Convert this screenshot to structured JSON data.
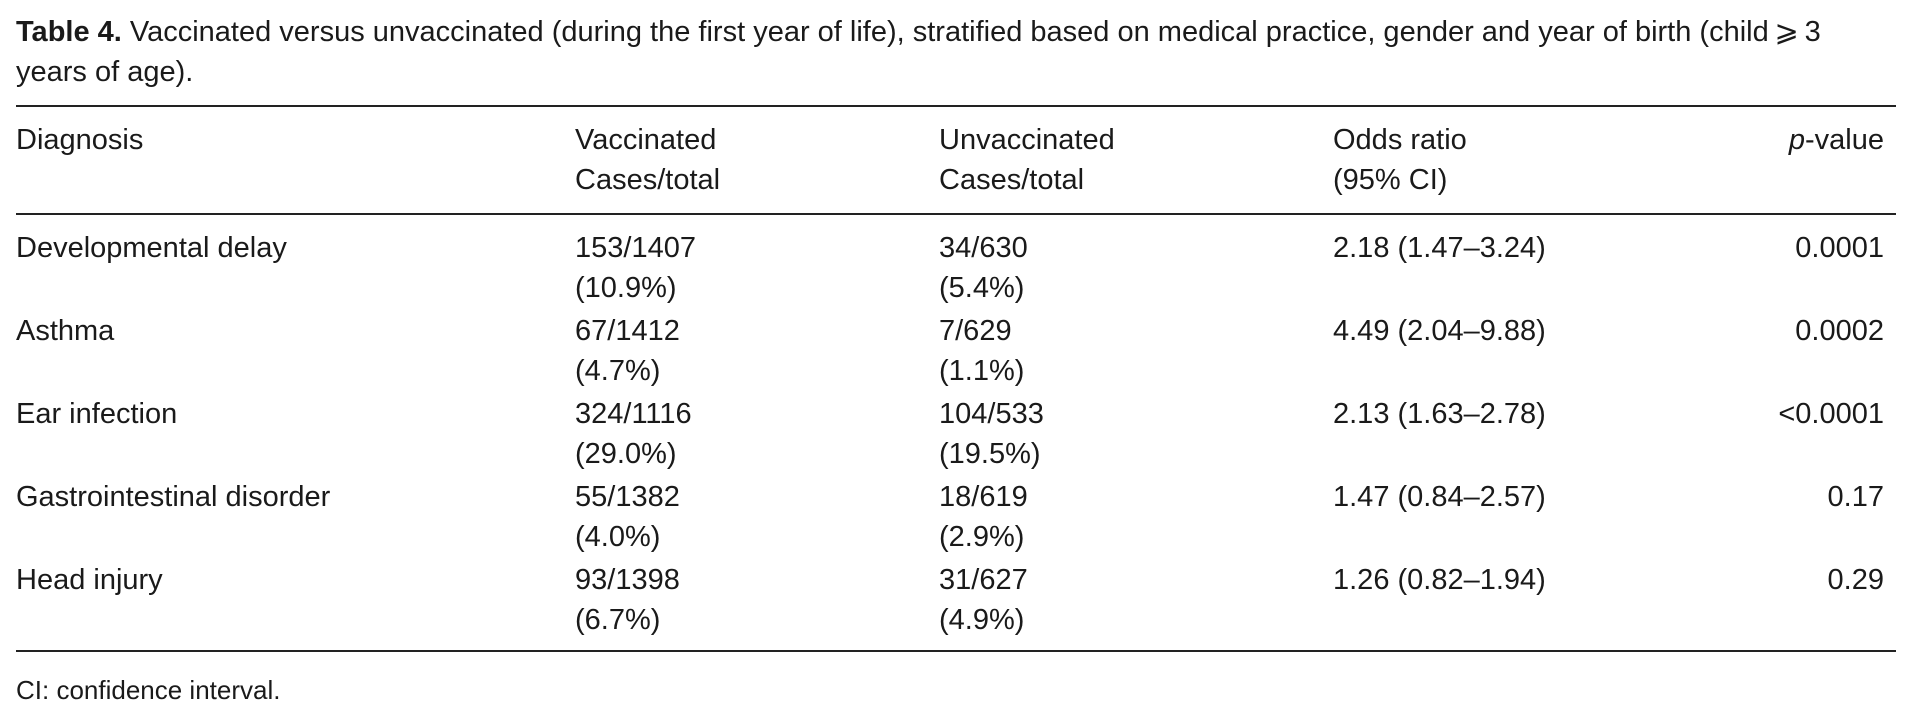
{
  "caption": {
    "label": "Table 4.",
    "text": "Vaccinated versus unvaccinated (during the first year of life), stratified based on medical practice, gender and year of birth (child ⩾ 3 years of age)."
  },
  "table": {
    "headers": {
      "diagnosis": "Diagnosis",
      "vaccinated_l1": "Vaccinated",
      "vaccinated_l2": "Cases/total",
      "unvaccinated_l1": "Unvaccinated",
      "unvaccinated_l2": "Cases/total",
      "odds_l1": "Odds ratio",
      "odds_l2": "(95% CI)",
      "p_italic": "p",
      "p_rest": "-value"
    },
    "rows": [
      {
        "diagnosis": "Developmental delay",
        "vacc_count": "153/1407",
        "vacc_pct": "(10.9%)",
        "unvacc_count": "34/630",
        "unvacc_pct": "(5.4%)",
        "odds": "2.18 (1.47–3.24)",
        "p": "0.0001"
      },
      {
        "diagnosis": "Asthma",
        "vacc_count": "67/1412",
        "vacc_pct": "(4.7%)",
        "unvacc_count": "7/629",
        "unvacc_pct": "(1.1%)",
        "odds": "4.49 (2.04–9.88)",
        "p": "0.0002"
      },
      {
        "diagnosis": "Ear infection",
        "vacc_count": "324/1116",
        "vacc_pct": "(29.0%)",
        "unvacc_count": "104/533",
        "unvacc_pct": "(19.5%)",
        "odds": "2.13 (1.63–2.78)",
        "p": "<0.0001"
      },
      {
        "diagnosis": "Gastrointestinal disorder",
        "vacc_count": "55/1382",
        "vacc_pct": "(4.0%)",
        "unvacc_count": "18/619",
        "unvacc_pct": "(2.9%)",
        "odds": "1.47 (0.84–2.57)",
        "p": "0.17"
      },
      {
        "diagnosis": "Head injury",
        "vacc_count": "93/1398",
        "vacc_pct": "(6.7%)",
        "unvacc_count": "31/627",
        "unvacc_pct": "(4.9%)",
        "odds": "1.26 (0.82–1.94)",
        "p": "0.29"
      }
    ]
  },
  "footnote": "CI: confidence interval."
}
